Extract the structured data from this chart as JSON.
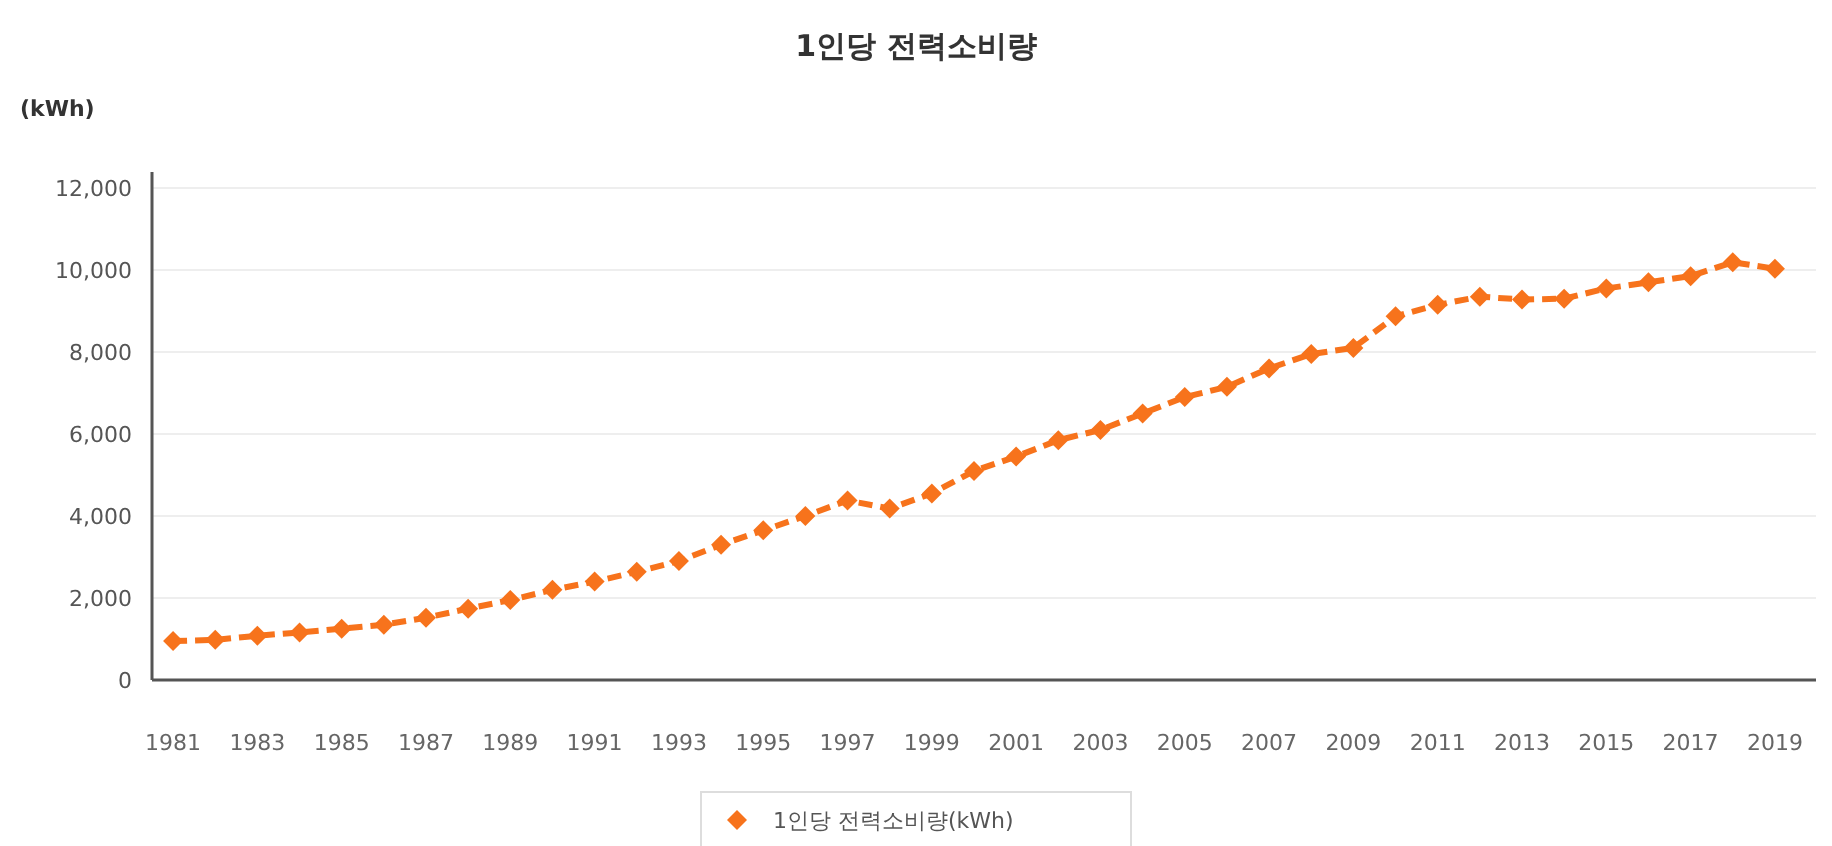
{
  "chart_data": {
    "type": "line",
    "title": "1인당 전력소비량",
    "ylabel": "(kWh)",
    "categories": [
      "1981",
      null,
      "1983",
      null,
      "1985",
      null,
      "1987",
      null,
      "1989",
      null,
      "1991",
      null,
      "1993",
      null,
      "1995",
      null,
      "1997",
      null,
      "1999",
      null,
      "2001",
      null,
      "2003",
      null,
      "2005",
      null,
      "2007",
      null,
      "2009",
      null,
      "2011",
      null,
      "2013",
      null,
      "2015",
      null,
      "2017",
      null,
      "2019"
    ],
    "series": [
      {
        "name": "1인당 전력소비량(kWh)",
        "color": "#f7731c",
        "values": [
          950,
          980,
          1080,
          1160,
          1250,
          1350,
          1520,
          1740,
          1950,
          2200,
          2400,
          2640,
          2900,
          3300,
          3650,
          4000,
          4380,
          4180,
          4550,
          5100,
          5450,
          5850,
          6100,
          6500,
          6900,
          7150,
          7600,
          7950,
          8100,
          8870,
          9150,
          9350,
          9280,
          9300,
          9550,
          9700,
          9850,
          10190,
          10030
        ]
      }
    ],
    "ylim": [
      0,
      12000
    ],
    "yticks": [
      {
        "value": 0,
        "label": "0"
      },
      {
        "value": 2000,
        "label": "2,000"
      },
      {
        "value": 4000,
        "label": "4,000"
      },
      {
        "value": 6000,
        "label": "6,000"
      },
      {
        "value": 8000,
        "label": "8,000"
      },
      {
        "value": 10000,
        "label": "10,000"
      },
      {
        "value": 12000,
        "label": "12,000"
      }
    ],
    "grid": "y",
    "legend": "bottom",
    "marker": "diamond",
    "line_style": "dashed"
  }
}
